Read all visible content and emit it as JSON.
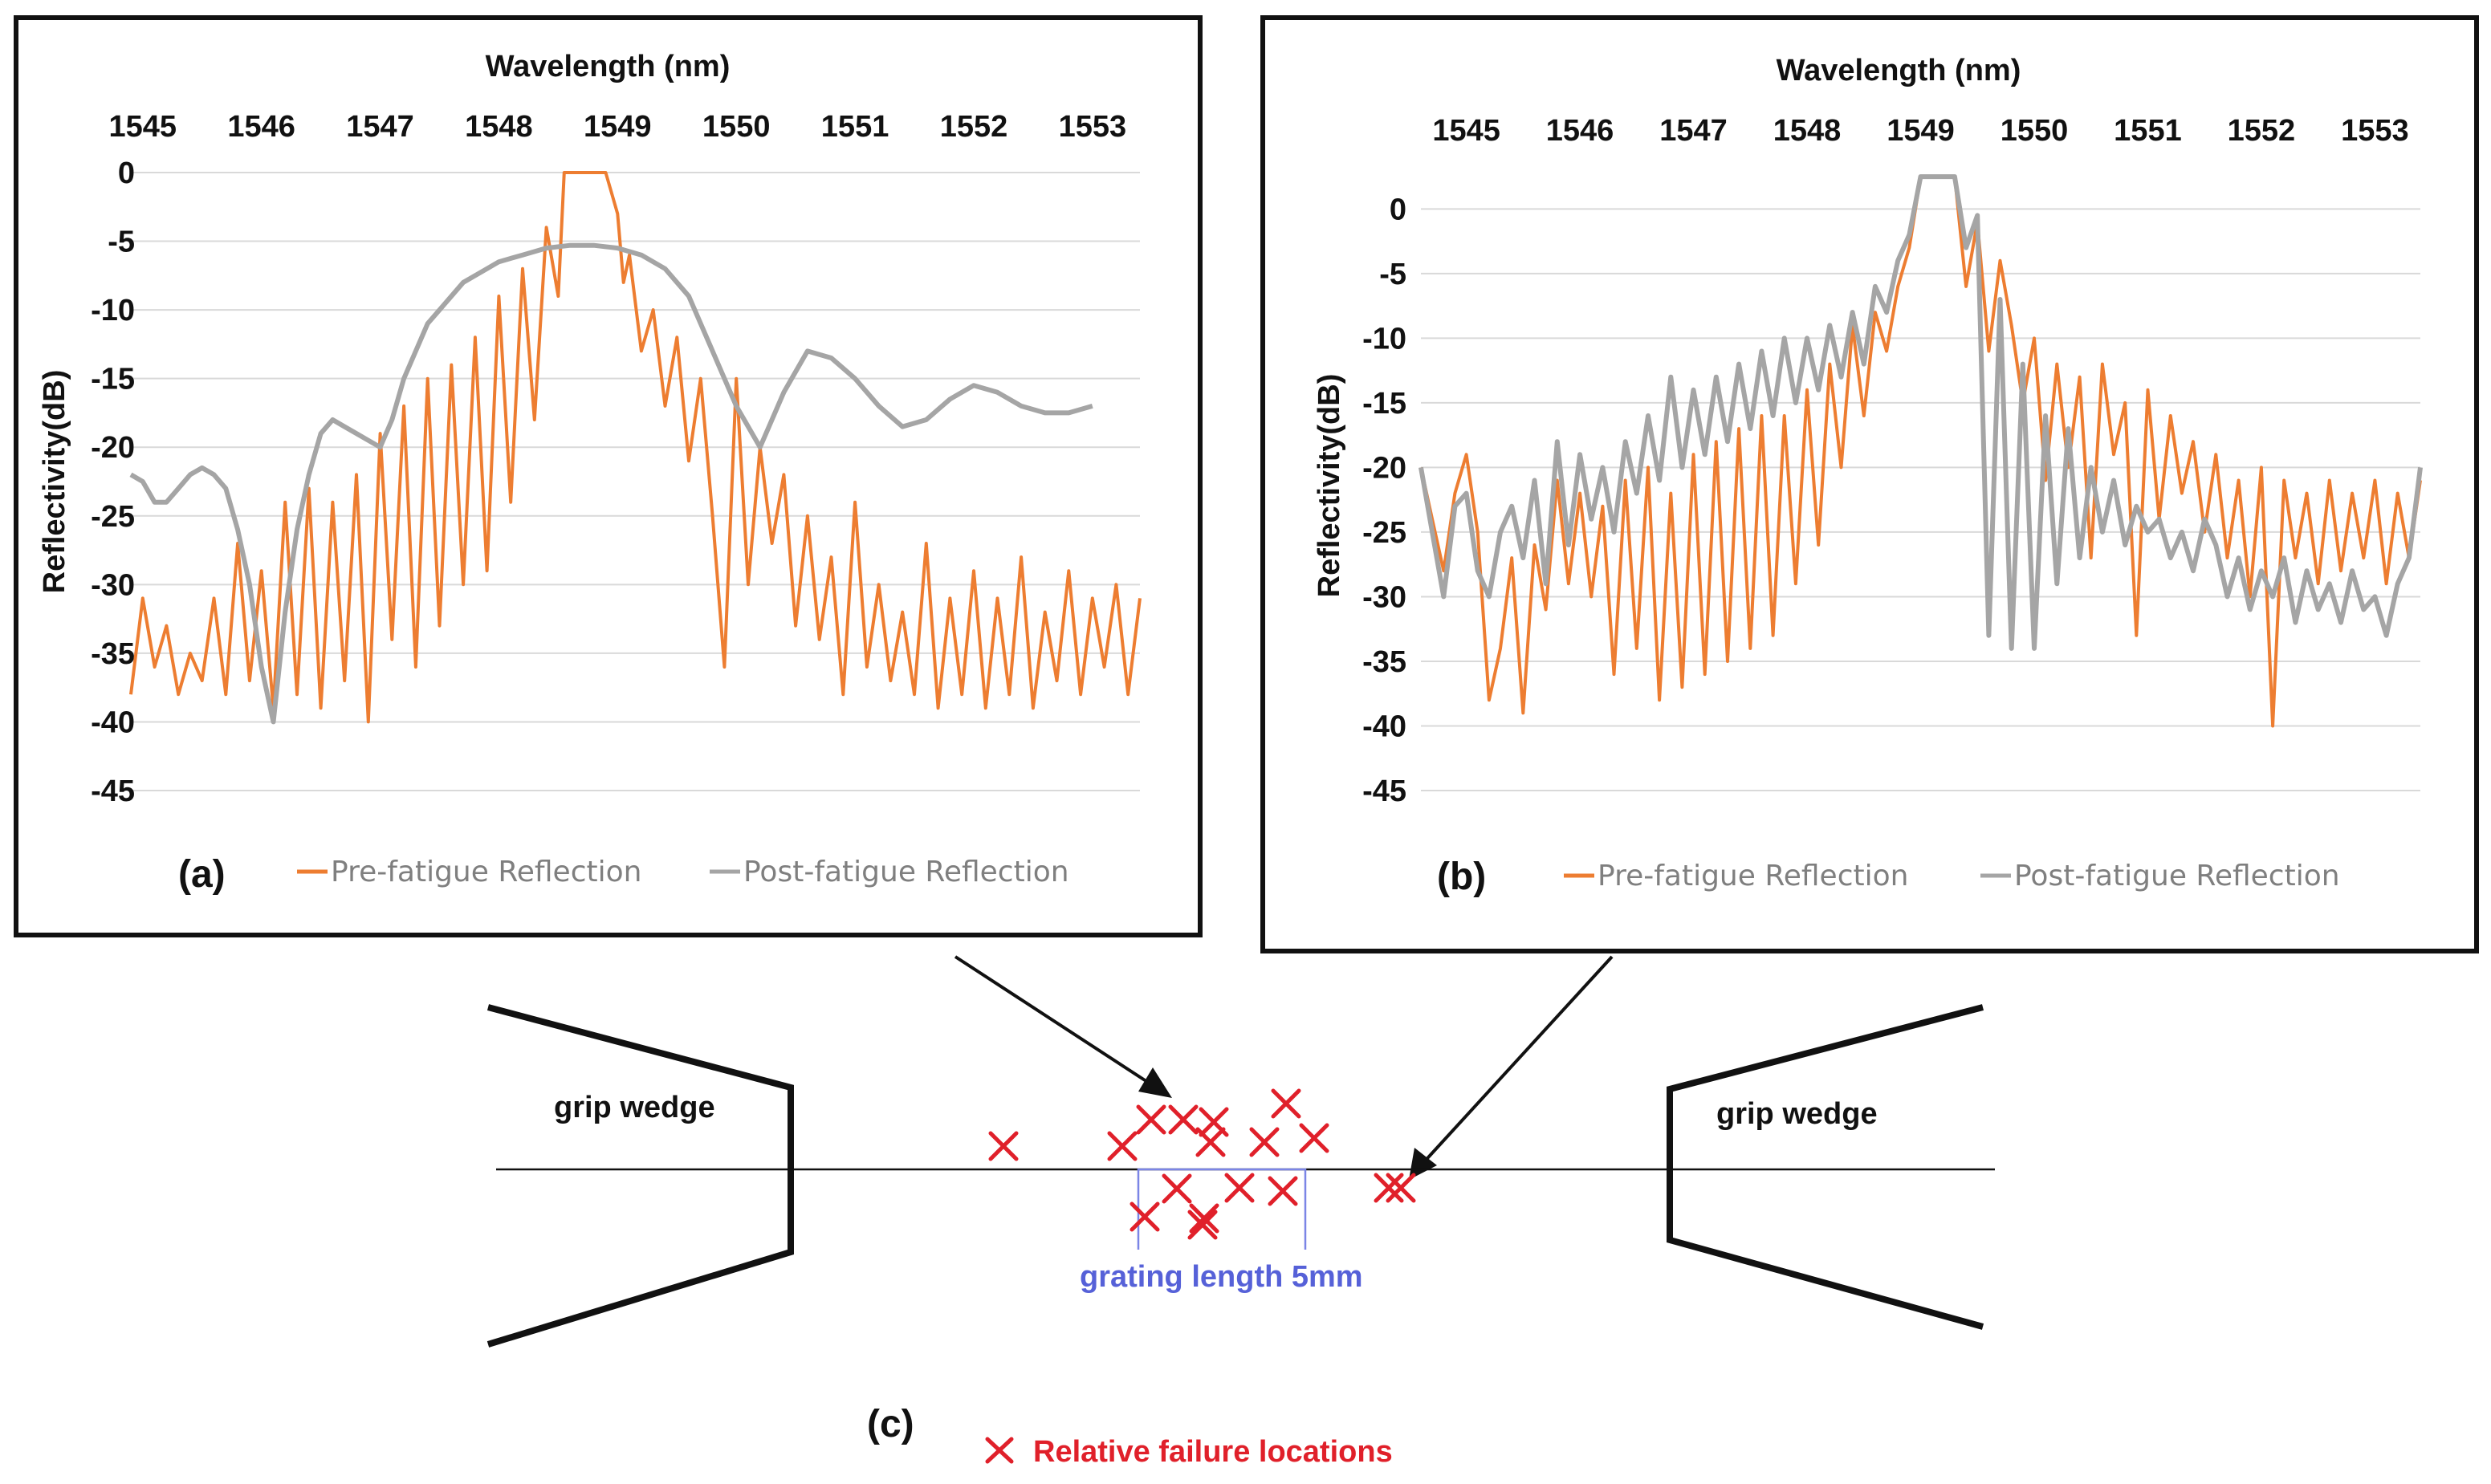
{
  "chart_data": [
    {
      "id": "a",
      "type": "line",
      "panel_label": "(a)",
      "xlabel": "Wavelength (nm)",
      "ylabel": "Reflectivity(dB)",
      "x_ticks": [
        1545,
        1546,
        1547,
        1548,
        1549,
        1550,
        1551,
        1552,
        1553
      ],
      "y_ticks": [
        0,
        -5,
        -10,
        -15,
        -20,
        -25,
        -30,
        -35,
        -40,
        -45
      ],
      "xlim": [
        1544.9,
        1553.4
      ],
      "ylim": [
        -45,
        0
      ],
      "legend": [
        "Pre-fatigue Reflection",
        "Post-fatigue Reflection"
      ],
      "series": [
        {
          "name": "Pre-fatigue Reflection",
          "color": "#ed7d31",
          "x": [
            1544.9,
            1545.0,
            1545.1,
            1545.2,
            1545.3,
            1545.4,
            1545.5,
            1545.6,
            1545.7,
            1545.8,
            1545.9,
            1546.0,
            1546.1,
            1546.2,
            1546.3,
            1546.4,
            1546.5,
            1546.6,
            1546.7,
            1546.8,
            1546.9,
            1547.0,
            1547.1,
            1547.2,
            1547.3,
            1547.4,
            1547.5,
            1547.6,
            1547.7,
            1547.8,
            1547.9,
            1548.0,
            1548.1,
            1548.2,
            1548.3,
            1548.4,
            1548.5,
            1548.55,
            1548.6,
            1548.7,
            1548.8,
            1548.9,
            1549.0,
            1549.05,
            1549.1,
            1549.2,
            1549.3,
            1549.4,
            1549.5,
            1549.6,
            1549.7,
            1549.8,
            1549.9,
            1550.0,
            1550.1,
            1550.2,
            1550.3,
            1550.4,
            1550.5,
            1550.6,
            1550.7,
            1550.8,
            1550.9,
            1551.0,
            1551.1,
            1551.2,
            1551.3,
            1551.4,
            1551.5,
            1551.6,
            1551.7,
            1551.8,
            1551.9,
            1552.0,
            1552.1,
            1552.2,
            1552.3,
            1552.4,
            1552.5,
            1552.6,
            1552.7,
            1552.8,
            1552.9,
            1553.0,
            1553.1,
            1553.2,
            1553.3,
            1553.4
          ],
          "values": [
            -38,
            -31,
            -36,
            -33,
            -38,
            -35,
            -37,
            -31,
            -38,
            -27,
            -37,
            -29,
            -39,
            -24,
            -38,
            -23,
            -39,
            -24,
            -37,
            -22,
            -40,
            -19,
            -34,
            -17,
            -36,
            -15,
            -33,
            -14,
            -30,
            -12,
            -29,
            -9,
            -24,
            -7,
            -18,
            -4,
            -9,
            0,
            0,
            0,
            0,
            0,
            -3,
            -8,
            -6,
            -13,
            -10,
            -17,
            -12,
            -21,
            -15,
            -25,
            -36,
            -15,
            -30,
            -20,
            -27,
            -22,
            -33,
            -25,
            -34,
            -28,
            -38,
            -24,
            -36,
            -30,
            -37,
            -32,
            -38,
            -27,
            -39,
            -31,
            -38,
            -29,
            -39,
            -31,
            -38,
            -28,
            -39,
            -32,
            -37,
            -29,
            -38,
            -31,
            -36,
            -30,
            -38,
            -31
          ]
        },
        {
          "name": "Post-fatigue Reflection",
          "color": "#a5a5a5",
          "x": [
            1544.9,
            1545.0,
            1545.1,
            1545.2,
            1545.3,
            1545.4,
            1545.5,
            1545.6,
            1545.7,
            1545.8,
            1545.9,
            1546.0,
            1546.1,
            1546.2,
            1546.3,
            1546.4,
            1546.5,
            1546.6,
            1546.7,
            1546.8,
            1546.9,
            1547.0,
            1547.1,
            1547.2,
            1547.3,
            1547.4,
            1547.5,
            1547.6,
            1547.7,
            1547.8,
            1547.9,
            1548.0,
            1548.2,
            1548.4,
            1548.6,
            1548.8,
            1549.0,
            1549.2,
            1549.4,
            1549.6,
            1549.8,
            1550.0,
            1550.2,
            1550.4,
            1550.6,
            1550.8,
            1551.0,
            1551.2,
            1551.4,
            1551.6,
            1551.8,
            1552.0,
            1552.2,
            1552.4,
            1552.6,
            1552.8,
            1553.0
          ],
          "values": [
            -22,
            -22.5,
            -24,
            -24,
            -23,
            -22,
            -21.5,
            -22,
            -23,
            -26,
            -30,
            -36,
            -40,
            -32,
            -26,
            -22,
            -19,
            -18,
            -18.5,
            -19,
            -19.5,
            -20,
            -18,
            -15,
            -13,
            -11,
            -10,
            -9,
            -8,
            -7.5,
            -7,
            -6.5,
            -6,
            -5.5,
            -5.3,
            -5.3,
            -5.5,
            -6,
            -7,
            -9,
            -13,
            -17,
            -20,
            -16,
            -13,
            -13.5,
            -15,
            -17,
            -18.5,
            -18,
            -16.5,
            -15.5,
            -16,
            -17,
            -17.5,
            -17.5,
            -17
          ]
        }
      ]
    },
    {
      "id": "b",
      "type": "line",
      "panel_label": "(b)",
      "xlabel": "Wavelength (nm)",
      "ylabel": "Reflectivity(dB)",
      "x_ticks": [
        1545,
        1546,
        1547,
        1548,
        1549,
        1550,
        1551,
        1552,
        1553
      ],
      "y_ticks": [
        0,
        -5,
        -10,
        -15,
        -20,
        -25,
        -30,
        -35,
        -40,
        -45
      ],
      "xlim": [
        1544.6,
        1553.4
      ],
      "ylim": [
        -45,
        3
      ],
      "legend": [
        "Pre-fatigue Reflection",
        "Post-fatigue Reflection"
      ],
      "series": [
        {
          "name": "Pre-fatigue Reflection",
          "color": "#ed7d31",
          "x": [
            1544.6,
            1544.7,
            1544.8,
            1544.9,
            1545.0,
            1545.1,
            1545.2,
            1545.3,
            1545.4,
            1545.5,
            1545.6,
            1545.7,
            1545.8,
            1545.9,
            1546.0,
            1546.1,
            1546.2,
            1546.3,
            1546.4,
            1546.5,
            1546.6,
            1546.7,
            1546.8,
            1546.9,
            1547.0,
            1547.1,
            1547.2,
            1547.3,
            1547.4,
            1547.5,
            1547.6,
            1547.7,
            1547.8,
            1547.9,
            1548.0,
            1548.1,
            1548.2,
            1548.3,
            1548.4,
            1548.5,
            1548.6,
            1548.7,
            1548.8,
            1548.9,
            1549.0,
            1549.1,
            1549.2,
            1549.3,
            1549.4,
            1549.5,
            1549.6,
            1549.7,
            1549.8,
            1549.9,
            1550.0,
            1550.1,
            1550.2,
            1550.3,
            1550.4,
            1550.5,
            1550.6,
            1550.7,
            1550.8,
            1550.9,
            1551.0,
            1551.1,
            1551.2,
            1551.3,
            1551.4,
            1551.5,
            1551.6,
            1551.7,
            1551.8,
            1551.9,
            1552.0,
            1552.1,
            1552.2,
            1552.3,
            1552.4,
            1552.5,
            1552.6,
            1552.7,
            1552.8,
            1552.9,
            1553.0,
            1553.1,
            1553.2,
            1553.3,
            1553.4
          ],
          "values": [
            -20,
            -24,
            -28,
            -22,
            -19,
            -25,
            -38,
            -34,
            -27,
            -39,
            -26,
            -31,
            -21,
            -29,
            -22,
            -30,
            -23,
            -36,
            -21,
            -34,
            -20,
            -38,
            -22,
            -37,
            -19,
            -36,
            -18,
            -35,
            -17,
            -34,
            -16,
            -33,
            -16,
            -29,
            -14,
            -26,
            -12,
            -20,
            -9,
            -16,
            -8,
            -11,
            -6,
            -3,
            2.5,
            2.5,
            2.5,
            2.5,
            -6,
            -1,
            -11,
            -4,
            -9,
            -15,
            -10,
            -21,
            -12,
            -20,
            -13,
            -27,
            -12,
            -19,
            -15,
            -33,
            -14,
            -24,
            -16,
            -22,
            -18,
            -25,
            -19,
            -27,
            -21,
            -30,
            -20,
            -40,
            -21,
            -27,
            -22,
            -29,
            -21,
            -28,
            -22,
            -27,
            -21,
            -29,
            -22,
            -27,
            -21
          ]
        },
        {
          "name": "Post-fatigue Reflection",
          "color": "#a5a5a5",
          "x": [
            1544.6,
            1544.7,
            1544.8,
            1544.9,
            1545.0,
            1545.1,
            1545.2,
            1545.3,
            1545.4,
            1545.5,
            1545.6,
            1545.7,
            1545.8,
            1545.9,
            1546.0,
            1546.1,
            1546.2,
            1546.3,
            1546.4,
            1546.5,
            1546.6,
            1546.7,
            1546.8,
            1546.9,
            1547.0,
            1547.1,
            1547.2,
            1547.3,
            1547.4,
            1547.5,
            1547.6,
            1547.7,
            1547.8,
            1547.9,
            1548.0,
            1548.1,
            1548.2,
            1548.3,
            1548.4,
            1548.5,
            1548.6,
            1548.7,
            1548.8,
            1548.9,
            1549.0,
            1549.1,
            1549.2,
            1549.3,
            1549.4,
            1549.5,
            1549.6,
            1549.7,
            1549.8,
            1549.9,
            1550.0,
            1550.1,
            1550.2,
            1550.3,
            1550.4,
            1550.5,
            1550.6,
            1550.7,
            1550.8,
            1550.9,
            1551.0,
            1551.1,
            1551.2,
            1551.3,
            1551.4,
            1551.5,
            1551.6,
            1551.7,
            1551.8,
            1551.9,
            1552.0,
            1552.1,
            1552.2,
            1552.3,
            1552.4,
            1552.5,
            1552.6,
            1552.7,
            1552.8,
            1552.9,
            1553.0,
            1553.1,
            1553.2,
            1553.3,
            1553.4
          ],
          "values": [
            -20,
            -25,
            -30,
            -23,
            -22,
            -28,
            -30,
            -25,
            -23,
            -27,
            -21,
            -29,
            -18,
            -26,
            -19,
            -24,
            -20,
            -25,
            -18,
            -22,
            -16,
            -21,
            -13,
            -20,
            -14,
            -19,
            -13,
            -18,
            -12,
            -17,
            -11,
            -16,
            -10,
            -15,
            -10,
            -14,
            -9,
            -13,
            -8,
            -12,
            -6,
            -8,
            -4,
            -2,
            2.5,
            2.5,
            2.5,
            2.5,
            -3,
            -0.5,
            -33,
            -7,
            -34,
            -12,
            -34,
            -16,
            -29,
            -17,
            -27,
            -20,
            -25,
            -21,
            -26,
            -23,
            -25,
            -24,
            -27,
            -25,
            -28,
            -24,
            -26,
            -30,
            -27,
            -31,
            -28,
            -30,
            -27,
            -32,
            -28,
            -31,
            -29,
            -32,
            -28,
            -31,
            -30,
            -33,
            -29,
            -27,
            -20
          ]
        }
      ]
    }
  ],
  "diagram": {
    "panel_label": "(c)",
    "left_wedge_label": "grip wedge",
    "right_wedge_label": "grip wedge",
    "grating_label": "grating length 5mm",
    "legend_symbol": "×",
    "legend_label": "Relative failure locations",
    "failure_count": 17,
    "colors": {
      "failure": "#e0202a",
      "grating": "#5661d8"
    }
  }
}
